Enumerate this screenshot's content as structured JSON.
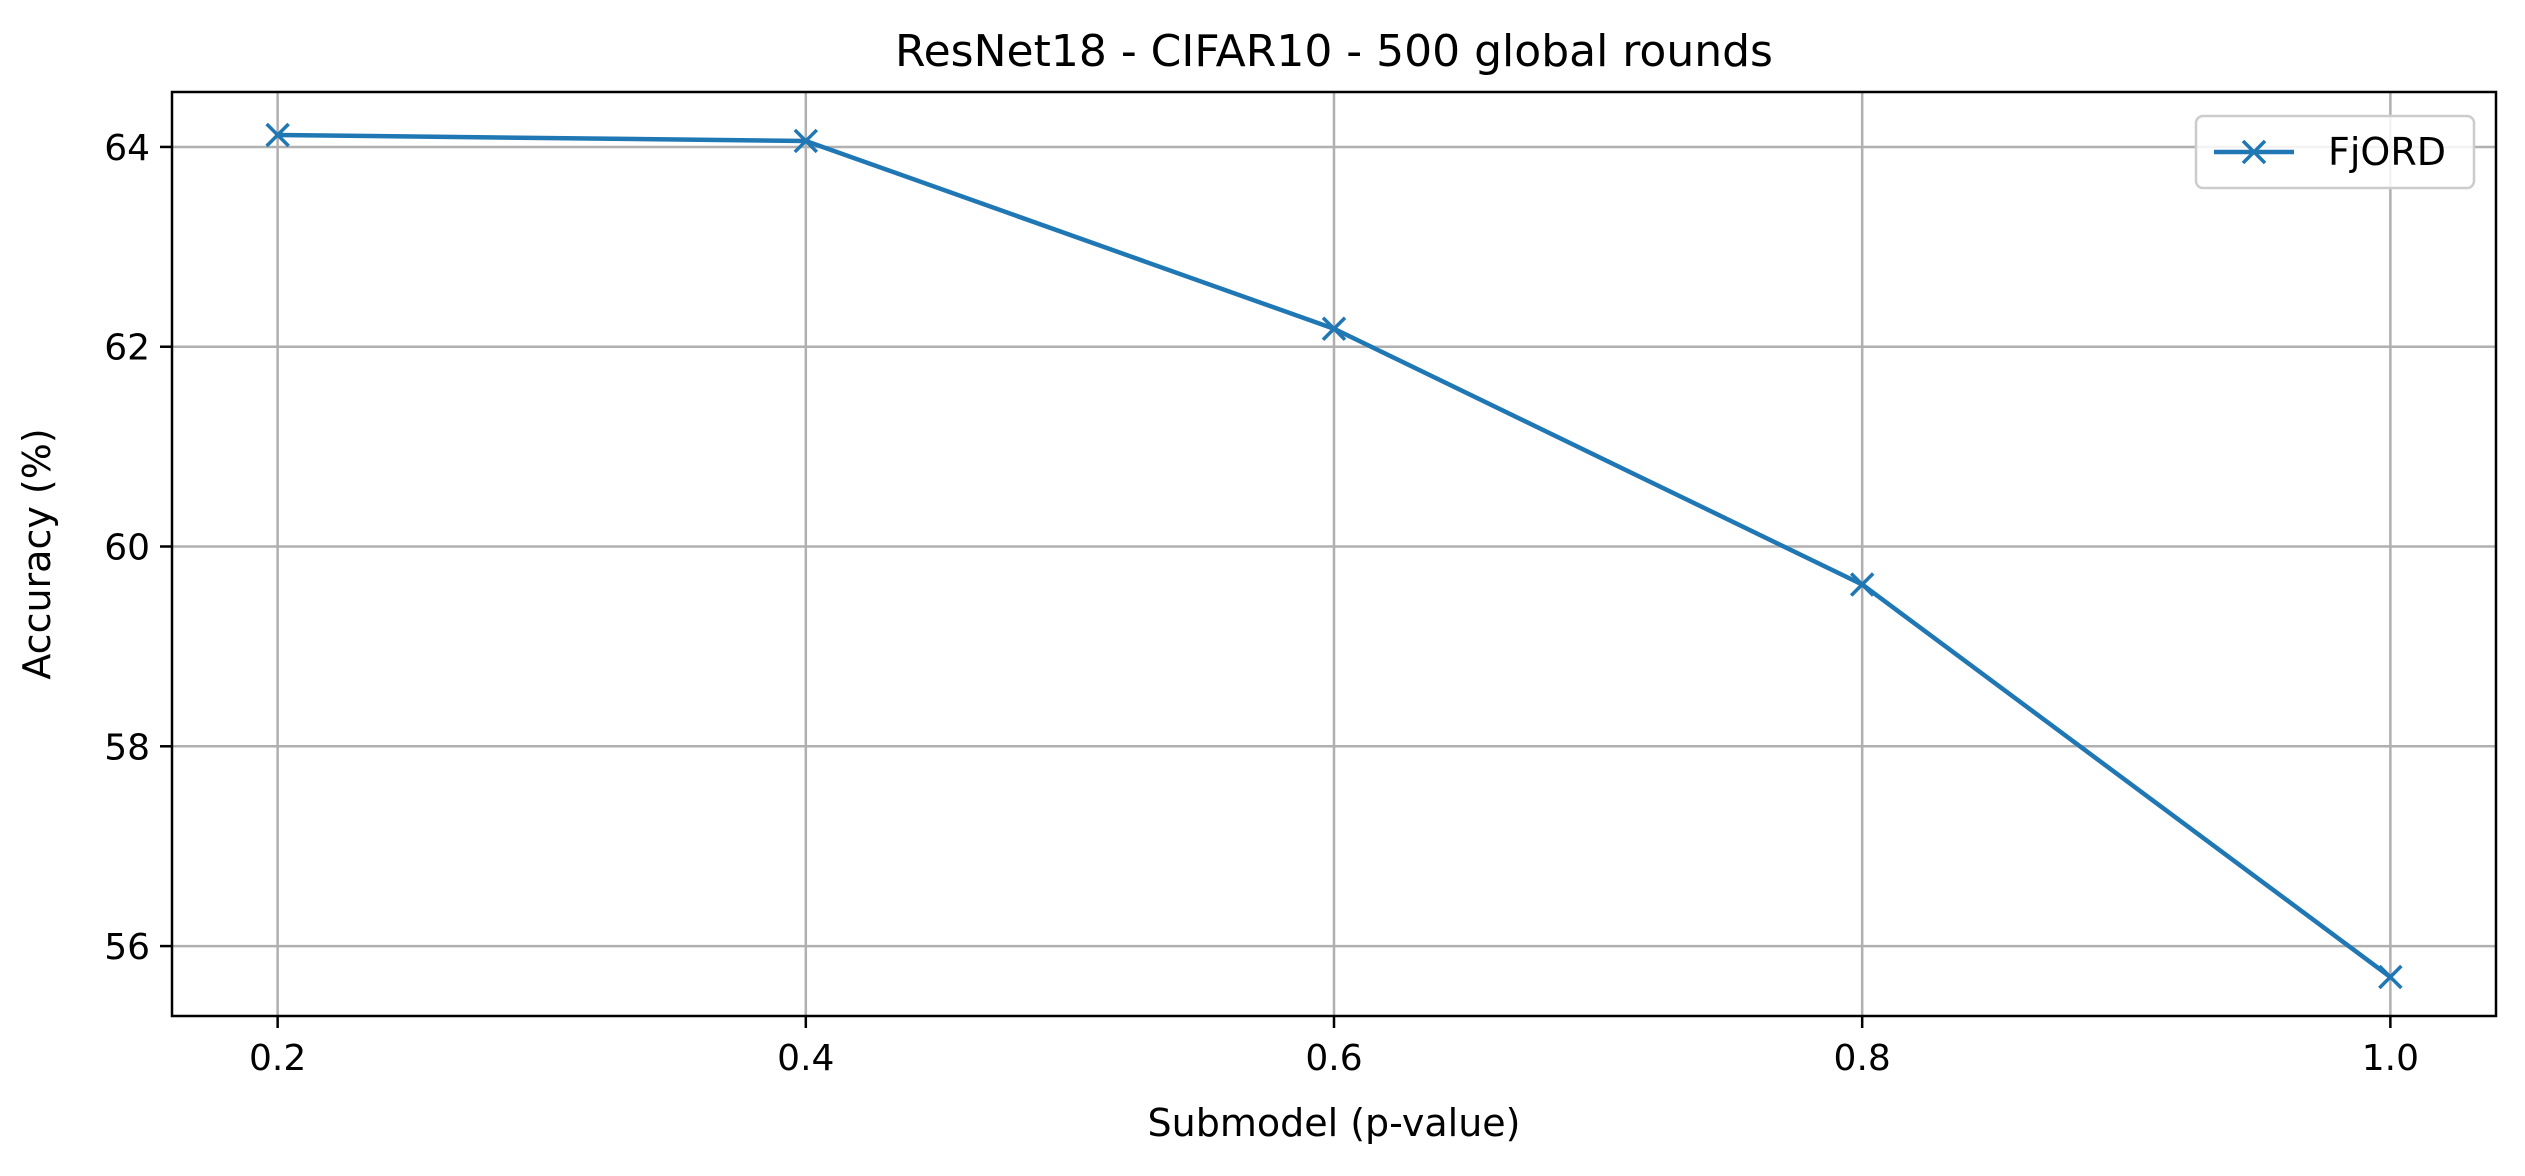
{
  "chart_data": {
    "type": "line",
    "title": "ResNet18 - CIFAR10 - 500 global rounds",
    "xlabel": "Submodel (p-value)",
    "ylabel": "Accuracy (%)",
    "xlim": [
      0.16,
      1.04
    ],
    "ylim": [
      55.3,
      64.55
    ],
    "x_ticks": [
      "0.2",
      "0.4",
      "0.6",
      "0.8",
      "1.0"
    ],
    "y_ticks": [
      "56",
      "58",
      "60",
      "62",
      "64"
    ],
    "grid": true,
    "legend_position": "top-right",
    "series": [
      {
        "name": "FjORD",
        "color": "#1f77b4",
        "marker": "x",
        "x": [
          0.2,
          0.4,
          0.6,
          0.8,
          1.0
        ],
        "y": [
          64.12,
          64.06,
          62.18,
          59.62,
          55.69
        ]
      }
    ]
  }
}
